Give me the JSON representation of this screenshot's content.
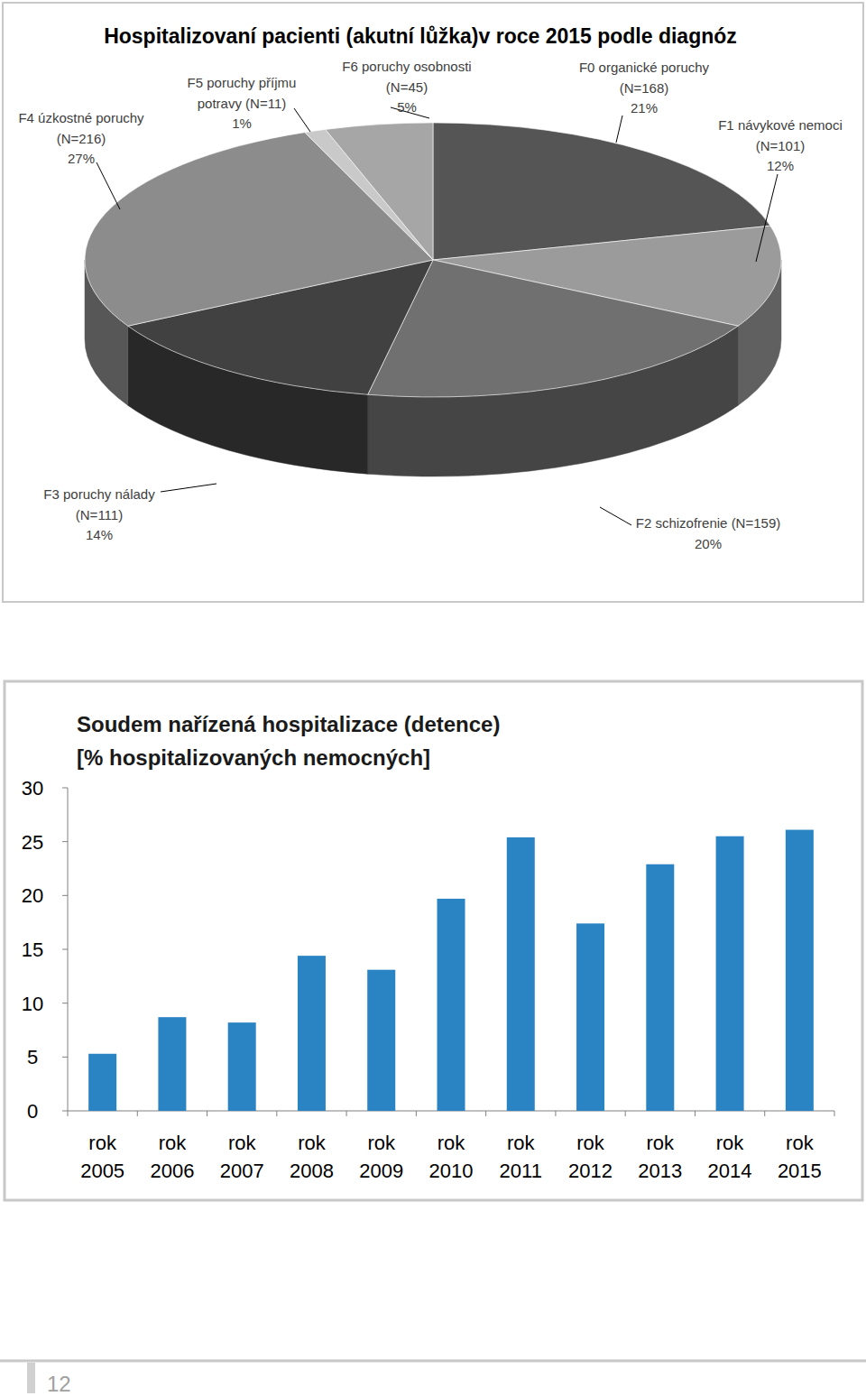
{
  "chart_data": [
    {
      "type": "pie",
      "title": "Hospitalizovaní pacienti (akutní lůžka)v roce 2015 podle diagnóz",
      "categories": [
        "F0 organické poruchy (N=168)",
        "F1 návykové nemoci (N=101)",
        "F2 schizofrenie (N=159)",
        "F3 poruchy nálady (N=111)",
        "F4 úzkostné poruchy (N=216)",
        "F5 poruchy příjmu potravy (N=11)",
        "F6 poruchy osobnosti (N=45)"
      ],
      "values": [
        21,
        12,
        20,
        14,
        27,
        1,
        5
      ],
      "value_labels": [
        "21%",
        "12%",
        "20%",
        "14%",
        "27%",
        "1%",
        "5%"
      ],
      "data_labels": true,
      "colors": [
        "#555555",
        "#9b9b9b",
        "#707070",
        "#414141",
        "#8c8c8c",
        "#c9c9c9",
        "#a6a6a6"
      ]
    },
    {
      "type": "bar",
      "title": "Soudem nařízená hospitalizace (detence)",
      "subtitle": "[% hospitalizovaných nemocných]",
      "categories": [
        "rok 2005",
        "rok 2006",
        "rok 2007",
        "rok 2008",
        "rok 2009",
        "rok 2010",
        "rok 2011",
        "rok 2012",
        "rok 2013",
        "rok 2014",
        "rok 2015"
      ],
      "values": [
        5.3,
        8.7,
        8.2,
        14.4,
        13.1,
        19.7,
        25.4,
        17.4,
        22.9,
        25.5,
        26.1
      ],
      "color": "#2a84c4",
      "ylim": [
        0,
        30
      ],
      "yticks": [
        0,
        5,
        10,
        15,
        20,
        25,
        30
      ],
      "grid": false
    }
  ],
  "page": {
    "number": "12"
  }
}
